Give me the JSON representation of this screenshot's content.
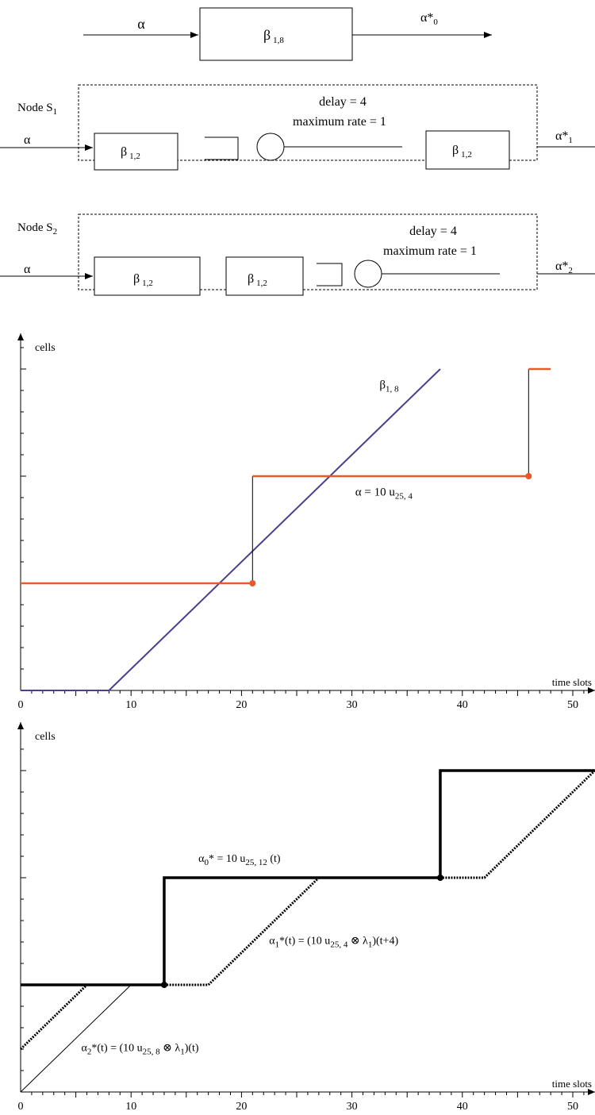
{
  "diagram": {
    "top": {
      "input": "α",
      "block": "β",
      "block_sub": "1,8",
      "output": "α*",
      "output_sub": "0"
    },
    "node1": {
      "label": "Node S",
      "label_sub": "1",
      "input": "α",
      "block_a": "β",
      "block_a_sub": "1,2",
      "block_b": "β",
      "block_b_sub": "1,2",
      "delay": "delay = 4",
      "max_rate": "maximum rate = 1",
      "output": "α*",
      "output_sub": "1"
    },
    "node2": {
      "label": "Node S",
      "label_sub": "2",
      "input": "α",
      "block_a": "β",
      "block_a_sub": "1,2",
      "block_b": "β",
      "block_b_sub": "1,2",
      "delay": "delay = 4",
      "max_rate": "maximum rate = 1",
      "output": "α*",
      "output_sub": "2"
    }
  },
  "chart_data": [
    {
      "type": "line",
      "ylabel": "cells",
      "xlabel": "time slots",
      "x_ticks": [
        "0",
        "10",
        "20",
        "30",
        "40",
        "50"
      ],
      "xlim": [
        0,
        52
      ],
      "ylim": [
        0,
        38
      ],
      "series": [
        {
          "name": "β",
          "name_sub": "1, 8",
          "color": "#4a3f8c",
          "x": [
            0,
            8,
            38
          ],
          "y": [
            0,
            0,
            30
          ]
        },
        {
          "name": "α = 10 u",
          "name_sub": "25, 4",
          "color": "#e85a2a",
          "x": [
            0,
            21,
            21,
            46,
            46,
            48
          ],
          "y": [
            10,
            10,
            20,
            20,
            30,
            30
          ],
          "open_points": [
            [
              21,
              10
            ],
            [
              46,
              20
            ]
          ]
        }
      ]
    },
    {
      "type": "line",
      "ylabel": "cells",
      "xlabel": "time slots",
      "x_ticks": [
        "0",
        "10",
        "20",
        "30",
        "40",
        "50"
      ],
      "xlim": [
        0,
        52
      ],
      "ylim": [
        0,
        38
      ],
      "series": [
        {
          "name": "α",
          "name_sub0": "0",
          "name_rest": "* = 10 u",
          "name_sub": "25, 12",
          "name_tail": " (t)",
          "style": "thick",
          "x": [
            0,
            13,
            13,
            38,
            38,
            52
          ],
          "y": [
            10,
            10,
            20,
            20,
            30,
            30
          ],
          "points": [
            [
              13,
              10
            ],
            [
              38,
              20
            ]
          ]
        },
        {
          "name": "α",
          "name_sub0": "1",
          "name_rest": "*(t)  = (10 u",
          "name_sub": "25, 4",
          "name_tail": " ⊗ λ",
          "name_sub2": "1",
          "name_end": ")(t+4)",
          "style": "dotted",
          "x": [
            0,
            6,
            17,
            27,
            42,
            52
          ],
          "y": [
            4,
            10,
            10,
            20,
            20,
            30
          ]
        },
        {
          "name": "α",
          "name_sub0": "2",
          "name_rest": "*(t)  = (10 u",
          "name_sub": "25, 8",
          "name_tail": " ⊗ λ",
          "name_sub2": "1",
          "name_end": ")(t)",
          "style": "thin",
          "x": [
            0,
            10
          ],
          "y": [
            0,
            10
          ]
        }
      ]
    }
  ]
}
